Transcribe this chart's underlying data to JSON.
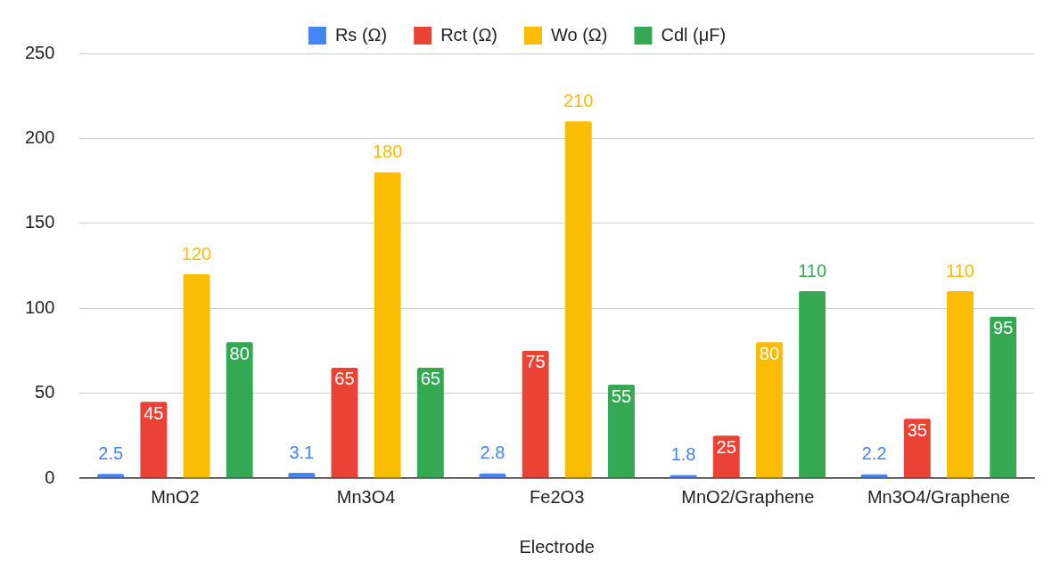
{
  "chart_data": {
    "type": "bar",
    "xlabel": "Electrode",
    "categories": [
      "MnO2",
      "Mn3O4",
      "Fe2O3",
      "MnO2/Graphene",
      "Mn3O4/Graphene"
    ],
    "series": [
      {
        "name": "Rs (Ω)",
        "color": "#4285f4",
        "values": [
          2.5,
          3.1,
          2.8,
          1.8,
          2.2
        ]
      },
      {
        "name": "Rct (Ω)",
        "color": "#ea4335",
        "values": [
          45,
          65,
          75,
          25,
          35
        ]
      },
      {
        "name": "Wo (Ω)",
        "color": "#fbbc04",
        "values": [
          120,
          180,
          210,
          80,
          110
        ]
      },
      {
        "name": "Cdl (μF)",
        "color": "#34a853",
        "values": [
          80,
          65,
          55,
          110,
          95
        ]
      }
    ],
    "ylim": [
      0,
      250
    ],
    "yticks": [
      0,
      50,
      100,
      150,
      200,
      250
    ],
    "grid": "y",
    "legend": "top",
    "data_labels": true
  }
}
